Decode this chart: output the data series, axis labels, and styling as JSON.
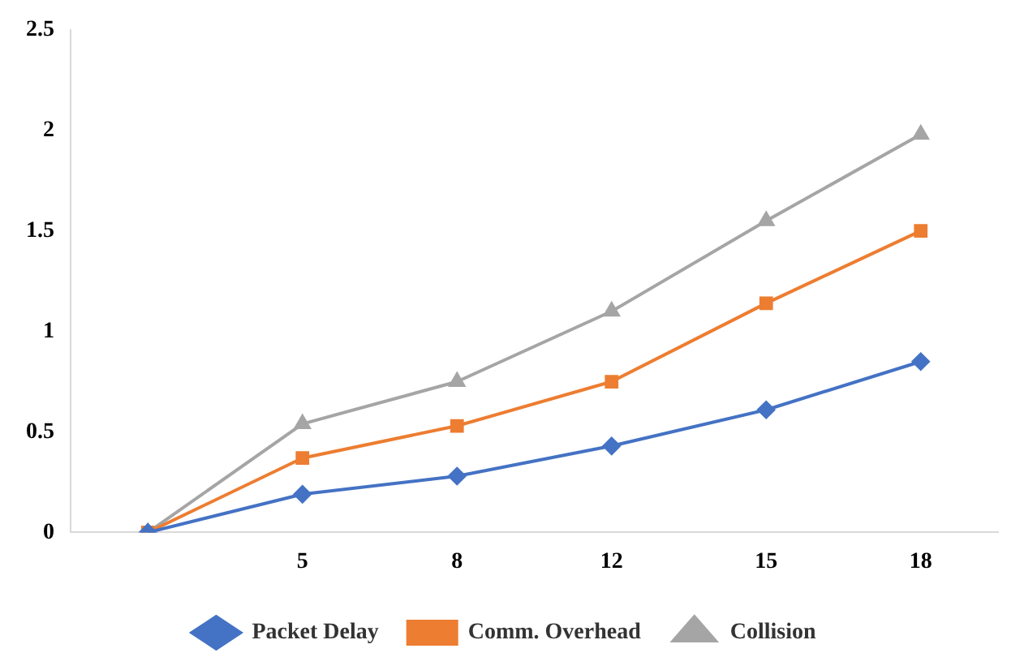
{
  "chart_data": {
    "type": "line",
    "categories": [
      null,
      "5",
      "8",
      "12",
      "15",
      "18"
    ],
    "series": [
      {
        "name": "Packet Delay",
        "color": "#4472c4",
        "marker": "diamond",
        "values": [
          0,
          0.19,
          0.28,
          0.43,
          0.61,
          0.85
        ]
      },
      {
        "name": "Comm. Overhead",
        "color": "#ed7d31",
        "marker": "square",
        "values": [
          0,
          0.37,
          0.53,
          0.75,
          1.14,
          1.5
        ]
      },
      {
        "name": "Collision",
        "color": "#a5a5a5",
        "marker": "triangle",
        "values": [
          0,
          0.54,
          0.75,
          1.1,
          1.55,
          1.98
        ]
      }
    ],
    "ylim": [
      0,
      2.5
    ],
    "yticks": [
      0,
      0.5,
      1,
      1.5,
      2,
      2.5
    ],
    "grid": false,
    "legend": "bottom",
    "line_style": "solid"
  }
}
